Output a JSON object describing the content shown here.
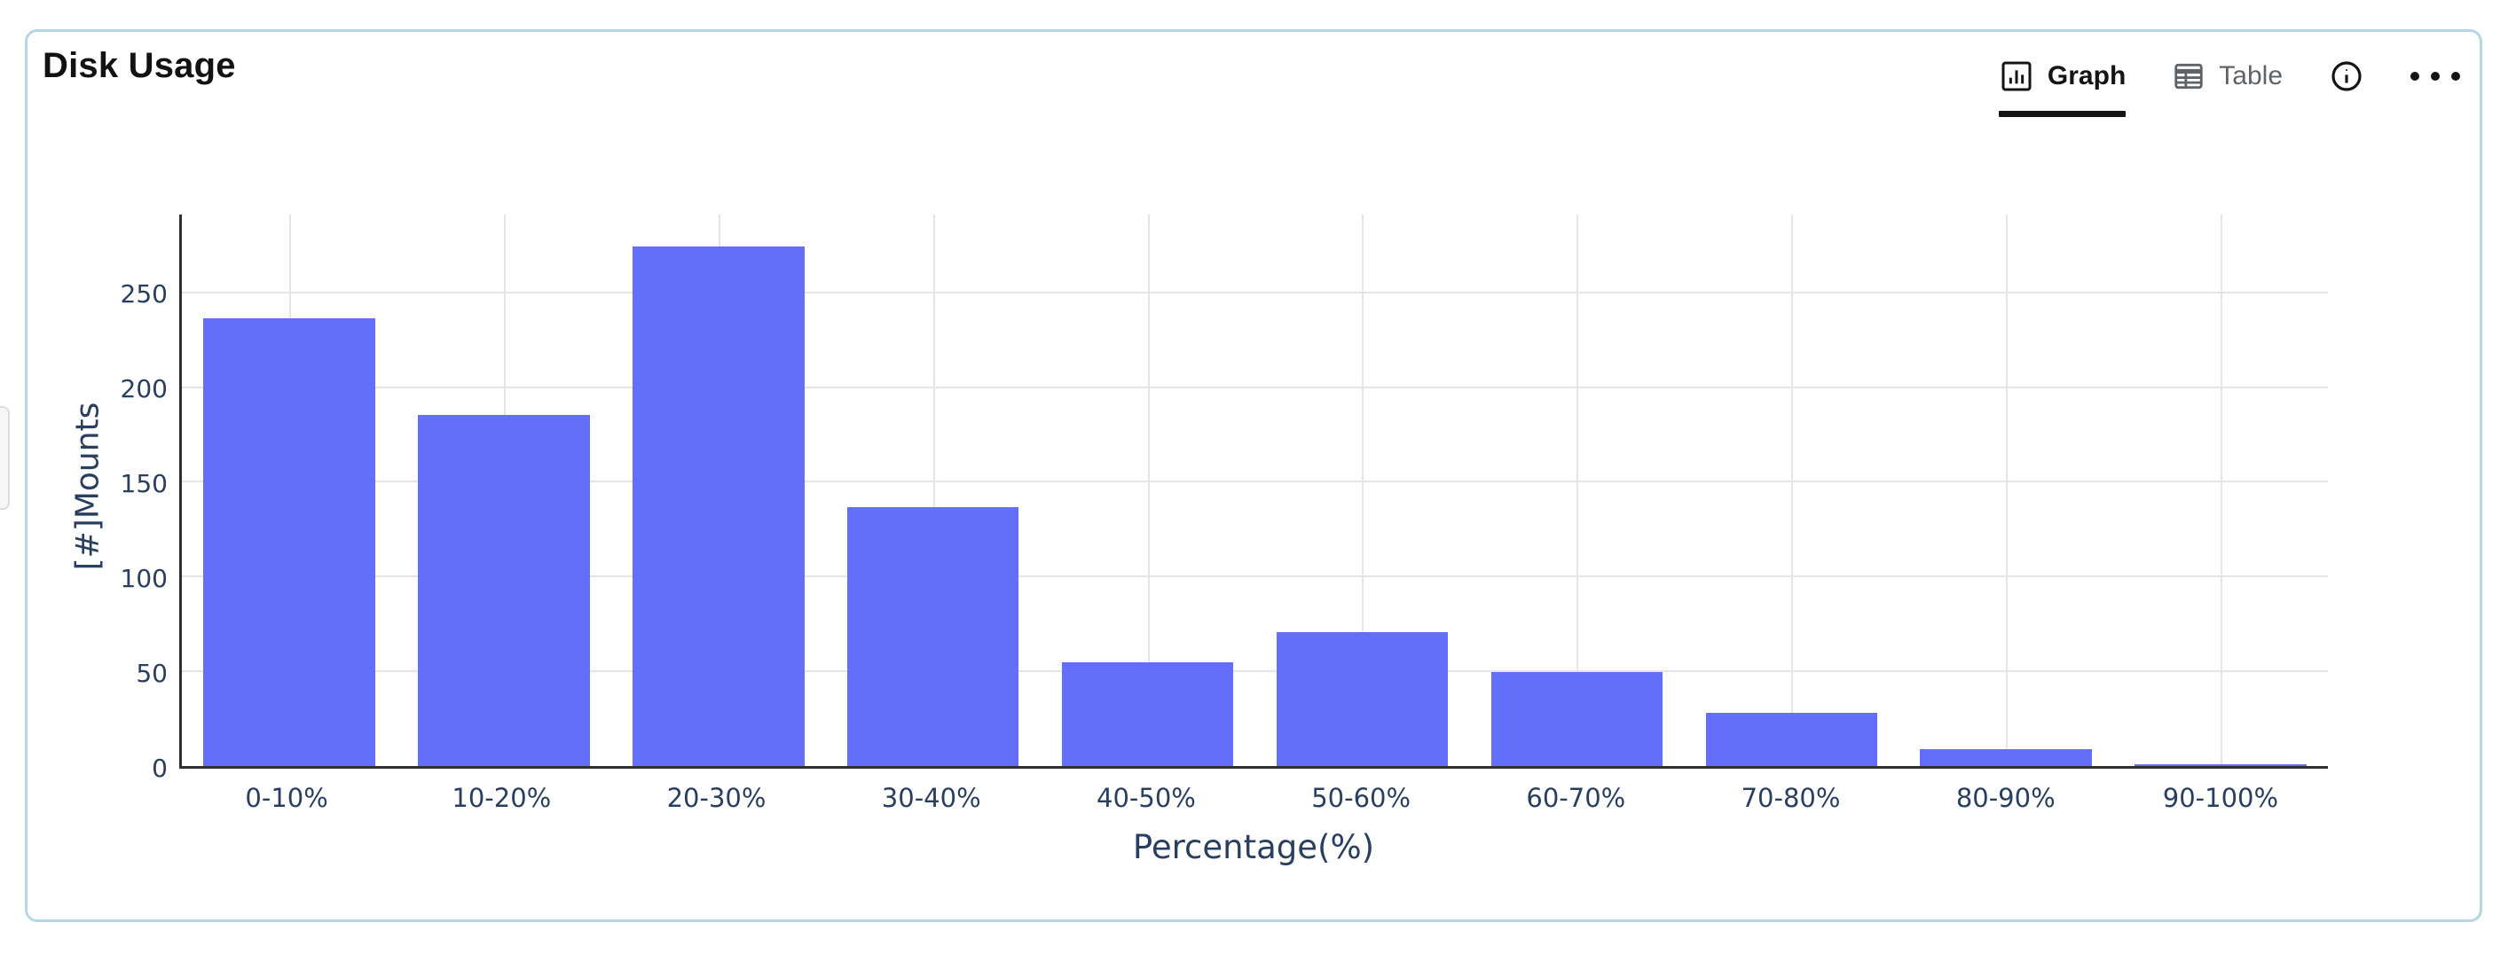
{
  "panel": {
    "title": "Disk Usage",
    "border_color": "#b3d8e5",
    "tabs": [
      {
        "label": "Graph",
        "active": true
      },
      {
        "label": "Table",
        "active": false
      }
    ],
    "icons": {
      "graph_icon": "bar-chart-icon",
      "table_icon": "table-grid-icon",
      "info_icon": "info-circle-icon",
      "menu_icon": "ellipsis-icon"
    }
  },
  "chart_data": {
    "type": "bar",
    "title": "Disk Usage",
    "categories": [
      "0-10%",
      "10-20%",
      "20-30%",
      "30-40%",
      "40-50%",
      "50-60%",
      "60-70%",
      "70-80%",
      "80-90%",
      "90-100%"
    ],
    "values": [
      237,
      186,
      275,
      137,
      55,
      71,
      50,
      28,
      9,
      1
    ],
    "xlabel": "Percentage(%)",
    "ylabel": "[#]Mounts",
    "yticks": [
      0,
      50,
      100,
      150,
      200,
      250
    ],
    "ylim": [
      0,
      292
    ],
    "grid": true,
    "legend_position": "none",
    "bar_color": "#636efa",
    "gridline_color": "#e4e4ea",
    "axis_line_color": "#2f2f2f",
    "tick_label_color": "#2a3f5f"
  }
}
